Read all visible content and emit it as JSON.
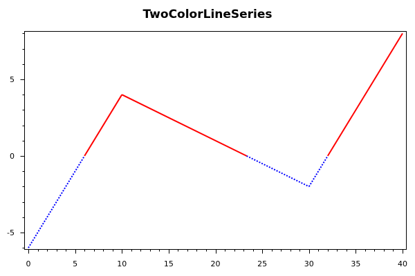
{
  "chart_data": {
    "type": "line",
    "title": "TwoColorLineSeries",
    "xlabel": "",
    "ylabel": "",
    "xlim": [
      0,
      40
    ],
    "ylim": [
      -6,
      8
    ],
    "x_ticks": [
      0,
      5,
      10,
      15,
      20,
      25,
      30,
      35,
      40
    ],
    "y_ticks": [
      -5,
      0,
      5
    ],
    "grid": false,
    "legend": "none",
    "threshold": 0,
    "color_above": "#ff0000",
    "color_below": "#0000ff",
    "series": [
      {
        "x": [
          0,
          10,
          30,
          40
        ],
        "y": [
          -6,
          4,
          -2,
          8
        ]
      }
    ]
  }
}
